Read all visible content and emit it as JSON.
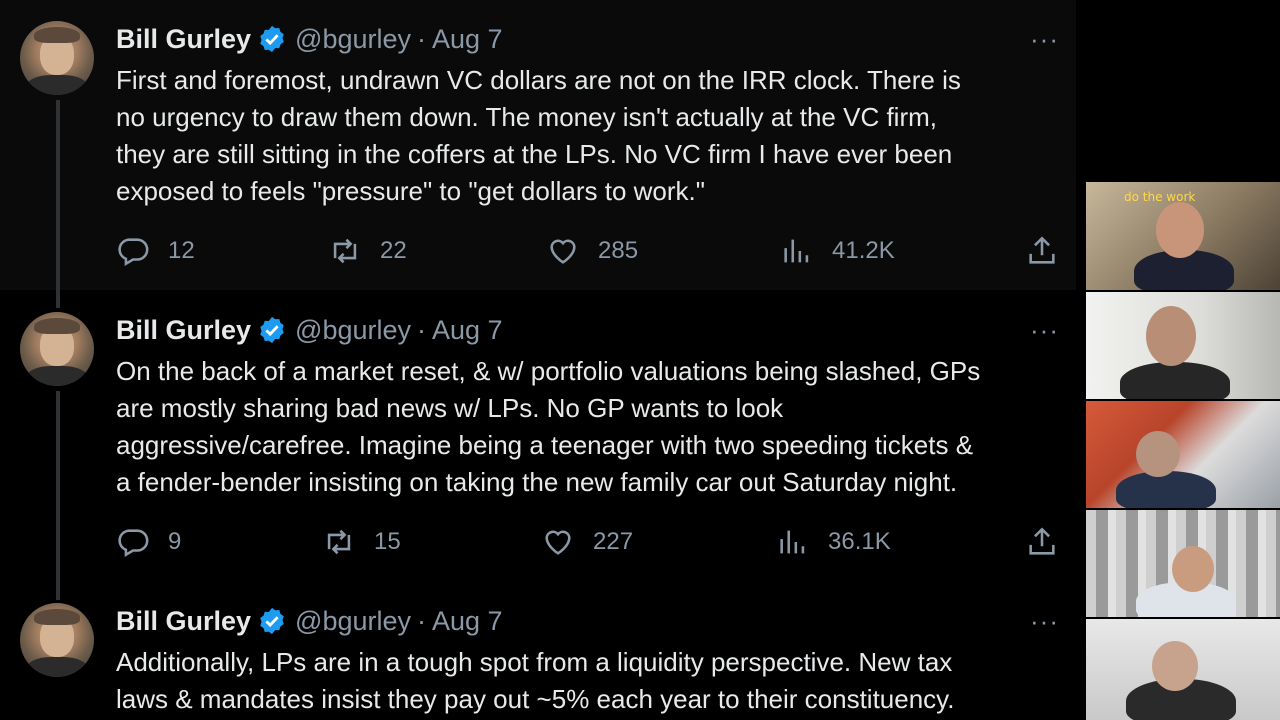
{
  "tweets": [
    {
      "name": "Bill Gurley",
      "handle": "@bgurley",
      "separator": "·",
      "date": "Aug 7",
      "more": "···",
      "text_lines": [
        "First and foremost, undrawn VC dollars are not on the IRR clock. There is",
        "no urgency to draw them down. The money isn't actually at the VC firm,",
        "they are still sitting in the coffers at the LPs. No VC firm I have ever been",
        "exposed to feels \"pressure\" to \"get dollars to work.\""
      ],
      "replies": "12",
      "reposts": "22",
      "likes": "285",
      "views": "41.2K"
    },
    {
      "name": "Bill Gurley",
      "handle": "@bgurley",
      "separator": "·",
      "date": "Aug 7",
      "more": "···",
      "text_lines": [
        "On the back of a market reset, & w/ portfolio valuations being slashed, GPs",
        "are mostly sharing bad news w/ LPs. No GP wants to look",
        "aggressive/carefree. Imagine being a teenager with two speeding tickets &",
        "a fender-bender insisting on taking the new family car out Saturday night."
      ],
      "replies": "9",
      "reposts": "15",
      "likes": "227",
      "views": "36.1K"
    },
    {
      "name": "Bill Gurley",
      "handle": "@bgurley",
      "separator": "·",
      "date": "Aug 7",
      "more": "···",
      "text_lines": [
        "Additionally, LPs are in a tough spot from a liquidity perspective. New tax",
        "laws & mandates insist they pay out ~5% each year to their constituency."
      ]
    }
  ],
  "video_call": {
    "neon_sign": "do the work"
  },
  "icons": {
    "reply": "reply-icon",
    "repost": "repost-icon",
    "like": "heart-icon",
    "views": "views-icon",
    "share": "share-icon",
    "verified": "verified-badge-icon"
  },
  "colors": {
    "background": "#000000",
    "text": "#e7e9ea",
    "muted": "#8b98a5",
    "verified": "#1d9bf0"
  }
}
